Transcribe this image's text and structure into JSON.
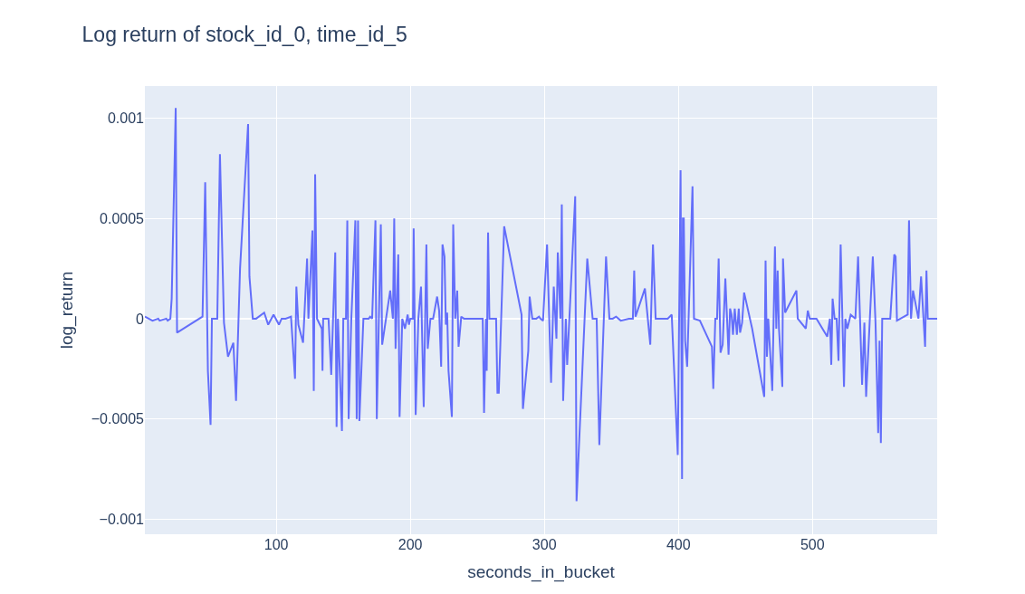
{
  "chart_data": {
    "type": "line",
    "title": "Log return of stock_id_0, time_id_5",
    "xlabel": "seconds_in_bucket",
    "ylabel": "log_return",
    "x": [
      2,
      7.7,
      12,
      13,
      18,
      19,
      21,
      22,
      25,
      26,
      45,
      47,
      49,
      51,
      52,
      56,
      58,
      61,
      64,
      68,
      70,
      73,
      79,
      80,
      82.5,
      85,
      91,
      94,
      98,
      102,
      104,
      107,
      111,
      114,
      115,
      116.5,
      120,
      123,
      124,
      127,
      128,
      129,
      130.4,
      134,
      134.5,
      135,
      139,
      141,
      144,
      145,
      146,
      149,
      150,
      152,
      153,
      154,
      156,
      159,
      160,
      161,
      162,
      165,
      169,
      170,
      171.5,
      174,
      175,
      178,
      179,
      185,
      187,
      188,
      189,
      191,
      192,
      194,
      196,
      198,
      199,
      200,
      202,
      202.5,
      204,
      206,
      208,
      210,
      212,
      213,
      215,
      217,
      220,
      221.5,
      223,
      224,
      225.5,
      226.5,
      227.5,
      228.5,
      231,
      232,
      233.5,
      235,
      236,
      238,
      240,
      254,
      255,
      256.5,
      257,
      258,
      259,
      264,
      265,
      266,
      270,
      283,
      284,
      288,
      289,
      291,
      294,
      296,
      297,
      299,
      302,
      305,
      307,
      309,
      310,
      312,
      313,
      314,
      316,
      317,
      323,
      324,
      332,
      336,
      339,
      341,
      346,
      348.5,
      351,
      353.5,
      357,
      363,
      366,
      367,
      368,
      375,
      379,
      381,
      383,
      392,
      395,
      399.5,
      401.6,
      402.7,
      403.3,
      404,
      405,
      406.5,
      410.5,
      411.6,
      416,
      425,
      426,
      427.5,
      428.8,
      430,
      431.4,
      433,
      435,
      437.4,
      438.5,
      439.6,
      440.7,
      442,
      443.6,
      445,
      446,
      447.5,
      449,
      455,
      464,
      465,
      466,
      467,
      470,
      472,
      473,
      474,
      475,
      477.5,
      478,
      479.6,
      488,
      489,
      495,
      496.5,
      498,
      503,
      511,
      513,
      514,
      515,
      516.5,
      518,
      519.4,
      521,
      523.5,
      524.5,
      526,
      528.5,
      532,
      534,
      537,
      538.7,
      540,
      545,
      547,
      549,
      550,
      551,
      552,
      558,
      561,
      562,
      563,
      571,
      572,
      573.5,
      575,
      579,
      581,
      584,
      585,
      586,
      593
    ],
    "series": [
      {
        "color": "#636efa",
        "values": [
          1e-05,
          -1e-05,
          0,
          -1e-05,
          0,
          -1e-05,
          0,
          0.0001,
          0.00105,
          -7e-05,
          1e-05,
          0.00068,
          -0.00026,
          -0.00053,
          0,
          0,
          0.00082,
          -2e-05,
          -0.00019,
          -0.00012,
          -0.00041,
          0.00025,
          0.00097,
          0.00021,
          0,
          0,
          3e-05,
          -3e-05,
          2e-05,
          -3e-05,
          0,
          0,
          1e-05,
          -0.0003,
          0.00016,
          -3e-05,
          -0.00012,
          0.0003,
          0,
          0.00044,
          -0.00036,
          0.00072,
          0,
          -5e-05,
          -0.00026,
          0,
          0,
          -0.00028,
          0.00033,
          -0.00054,
          0,
          -0.00056,
          0,
          0,
          0.00049,
          -0.0005,
          0,
          0.00049,
          -0.0005,
          0.00049,
          -0.00051,
          0,
          0,
          1e-05,
          0,
          0.00049,
          -0.0005,
          0.00047,
          -0.00013,
          0.00014,
          0,
          0.0005,
          -0.00015,
          0.00032,
          -0.00049,
          0,
          -5e-05,
          2e-05,
          -3e-05,
          0,
          0,
          0.00045,
          -0.00048,
          0,
          0.00016,
          -0.00044,
          0.00037,
          -0.00015,
          0,
          0,
          0.00011,
          4e-05,
          -0.00024,
          0.00037,
          0.00031,
          -3e-05,
          3e-05,
          -0.00026,
          -0.00049,
          0.00047,
          0,
          0.00014,
          -0.00014,
          1e-05,
          0,
          0,
          -0.00047,
          0,
          -0.00026,
          0.00043,
          0,
          0,
          -0.00037,
          -0.00037,
          0.00046,
          2e-05,
          -0.00045,
          -0.00016,
          0.00011,
          0,
          0,
          1e-05,
          0,
          -1e-05,
          0.00037,
          -0.00032,
          0.00016,
          -0.0001,
          0.00033,
          0,
          0.00057,
          -0.00041,
          0,
          -0.00023,
          0.00061,
          -0.00091,
          0.0003,
          0,
          0,
          -0.00063,
          0.00031,
          0,
          0,
          1e-05,
          -1e-05,
          0,
          0,
          0.00024,
          1e-05,
          0.00015,
          -0.00013,
          0.00037,
          0,
          0,
          2e-05,
          -0.00068,
          0.00074,
          -0.0008,
          0.0005,
          0.0005,
          -0.00011,
          -0.00024,
          0.00066,
          0,
          -1e-05,
          -0.00014,
          -0.00035,
          0,
          0,
          0.0003,
          -0.00017,
          -0.00013,
          0.0002,
          -0.00018,
          5e-05,
          2e-05,
          -8e-05,
          5e-05,
          -8e-05,
          5e-05,
          -7e-05,
          -2e-05,
          0.00013,
          -5e-05,
          -0.00039,
          0.00029,
          -0.00019,
          0,
          -0.00036,
          0.00036,
          -5e-05,
          0.00024,
          -5e-05,
          -0.00034,
          0.0003,
          3e-05,
          0.00014,
          0,
          -5e-05,
          4e-05,
          0,
          0,
          -9e-05,
          0,
          -0.00023,
          0.0001,
          0,
          0,
          -0.00021,
          0.00037,
          -0.00034,
          0,
          -5e-05,
          2e-05,
          0,
          0.00031,
          -0.00033,
          -2e-05,
          -0.00039,
          0.00031,
          -2e-05,
          -0.00057,
          -0.00011,
          -0.00062,
          0,
          0,
          0.00032,
          0.00031,
          -1e-05,
          2e-05,
          0.00049,
          0,
          0.00014,
          0,
          0.00021,
          -0.00014,
          0.00024,
          0,
          0
        ]
      }
    ],
    "xlim": [
      2,
      593
    ],
    "ylim": [
      -0.001075,
      0.00116
    ],
    "xticks": [
      100,
      200,
      300,
      400,
      500
    ],
    "yticks": [
      {
        "value": -0.001,
        "label": "−0.001"
      },
      {
        "value": -0.0005,
        "label": "−0.0005"
      },
      0,
      0.0005,
      0.001
    ],
    "grid": true,
    "marker": "none",
    "line_style": "solid"
  }
}
